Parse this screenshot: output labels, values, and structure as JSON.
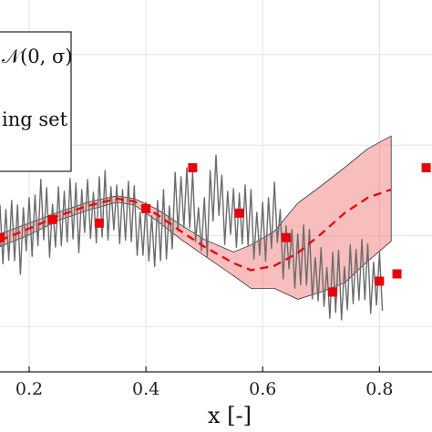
{
  "chart_data": {
    "type": "line",
    "xlabel": "x [-]",
    "ylabel": "",
    "title": "",
    "xlim": [
      0.15,
      0.89
    ],
    "ylim": [
      -1.5,
      2.6
    ],
    "x_ticks": [
      0.2,
      0.4,
      0.6,
      0.8
    ],
    "x_tick_labels": [
      "0.2",
      "0.4",
      "0.6",
      "0.8"
    ],
    "grid": true,
    "legend": {
      "placement": "top-left",
      "entries": [
        "𝒩(0, σ)",
        "ing set"
      ]
    },
    "series": [
      {
        "style": "noisy-gray",
        "x": [
          0.15,
          0.17,
          0.19,
          0.21,
          0.23,
          0.25,
          0.27,
          0.29,
          0.31,
          0.33,
          0.35,
          0.37,
          0.39,
          0.41,
          0.43,
          0.45,
          0.47,
          0.49,
          0.51,
          0.53,
          0.55,
          0.57,
          0.59,
          0.61,
          0.63,
          0.65,
          0.67,
          0.69,
          0.71,
          0.73,
          0.75,
          0.77,
          0.79
        ],
        "y": [
          0.02,
          -0.05,
          0.1,
          0.18,
          0.14,
          0.22,
          0.19,
          0.3,
          0.21,
          0.33,
          0.24,
          0.16,
          0.05,
          -0.05,
          0.12,
          0.38,
          0.31,
          0.1,
          0.45,
          0.28,
          0.2,
          0.12,
          0.05,
          0.15,
          -0.1,
          -0.25,
          -0.32,
          -0.45,
          -0.62,
          -0.55,
          -0.42,
          -0.48,
          -0.5
        ]
      },
      {
        "style": "red-dashed-mean",
        "x": [
          0.15,
          0.2,
          0.25,
          0.3,
          0.35,
          0.38,
          0.42,
          0.46,
          0.5,
          0.55,
          0.58,
          0.62,
          0.66,
          0.7,
          0.74,
          0.78,
          0.82
        ],
        "y": [
          -0.05,
          0.08,
          0.22,
          0.33,
          0.41,
          0.38,
          0.23,
          0.05,
          -0.12,
          -0.3,
          -0.38,
          -0.33,
          -0.19,
          0.02,
          0.25,
          0.42,
          0.51
        ]
      }
    ],
    "band": {
      "x": [
        0.15,
        0.2,
        0.25,
        0.3,
        0.35,
        0.38,
        0.42,
        0.46,
        0.5,
        0.55,
        0.58,
        0.62,
        0.66,
        0.7,
        0.74,
        0.78,
        0.82
      ],
      "upper": [
        0.02,
        0.14,
        0.26,
        0.37,
        0.44,
        0.41,
        0.29,
        0.12,
        -0.04,
        -0.18,
        -0.1,
        0.05,
        0.36,
        0.55,
        0.75,
        0.96,
        1.1
      ],
      "lower": [
        -0.12,
        0.01,
        0.17,
        0.28,
        0.37,
        0.34,
        0.16,
        -0.04,
        -0.22,
        -0.44,
        -0.58,
        -0.58,
        -0.7,
        -0.62,
        -0.52,
        -0.28,
        -0.06
      ]
    },
    "training_points": {
      "x": [
        0.15,
        0.24,
        0.32,
        0.4,
        0.48,
        0.56,
        0.64,
        0.72,
        0.8,
        0.83,
        0.88
      ],
      "y": [
        -0.02,
        0.18,
        0.14,
        0.3,
        0.75,
        0.25,
        -0.02,
        -0.62,
        -0.5,
        -0.42,
        0.75
      ]
    }
  }
}
